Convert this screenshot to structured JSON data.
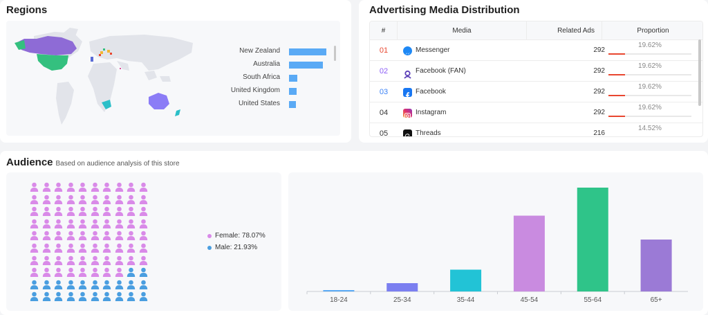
{
  "regions": {
    "title": "Regions",
    "items": [
      {
        "label": "New Zealand",
        "value": 53
      },
      {
        "label": "Australia",
        "value": 48
      },
      {
        "label": "South Africa",
        "value": 12
      },
      {
        "label": "United Kingdom",
        "value": 11
      },
      {
        "label": "United States",
        "value": 10
      }
    ],
    "colors": {
      "bar": "#5aaaf5",
      "na_purple": "#8e6bd6",
      "us_green": "#34c07f",
      "oceania": "#8b7cf6",
      "sa_teal": "#2bbfc8",
      "land": "#e2e4ea"
    }
  },
  "media": {
    "title": "Advertising Media Distribution",
    "headers": {
      "num": "#",
      "media": "Media",
      "ads": "Related Ads",
      "proportion": "Proportion"
    },
    "rows": [
      {
        "num": "01",
        "num_color": "#e8462f",
        "name": "Messenger",
        "icon": "messenger-icon",
        "ads": "292",
        "proportion": "19.62%",
        "ratio": 0.1962
      },
      {
        "num": "02",
        "num_color": "#8b5cf6",
        "name": "Facebook (FAN)",
        "icon": "facebook-fan-icon",
        "ads": "292",
        "proportion": "19.62%",
        "ratio": 0.1962
      },
      {
        "num": "03",
        "num_color": "#3b82f6",
        "name": "Facebook",
        "icon": "facebook-icon",
        "ads": "292",
        "proportion": "19.62%",
        "ratio": 0.1962
      },
      {
        "num": "04",
        "num_color": "#333333",
        "name": "Instagram",
        "icon": "instagram-icon",
        "ads": "292",
        "proportion": "19.62%",
        "ratio": 0.1962
      },
      {
        "num": "05",
        "num_color": "#333333",
        "name": "Threads",
        "icon": "threads-icon",
        "ads": "216",
        "proportion": "14.52%",
        "ratio": 0.1452
      }
    ]
  },
  "audience": {
    "title": "Audience",
    "subtitle": "Based on audience analysis of this store",
    "gender": {
      "female_label": "Female: 78.07%",
      "male_label": "Male: 21.93%",
      "female_share": 0.7807,
      "female_color": "#d98ae8",
      "male_color": "#4a9ee0"
    }
  },
  "chart_data": {
    "type": "bar",
    "categories": [
      "18-24",
      "25-34",
      "35-44",
      "45-54",
      "55-64",
      "65+"
    ],
    "values": [
      1,
      8,
      21,
      73,
      100,
      50
    ],
    "colors": [
      "#5aaaf5",
      "#7b7ff0",
      "#22c3d6",
      "#c98be0",
      "#2fc489",
      "#9b7ad6"
    ],
    "title": "",
    "xlabel": "",
    "ylabel": "",
    "ylim": [
      0,
      100
    ],
    "grid": false
  }
}
